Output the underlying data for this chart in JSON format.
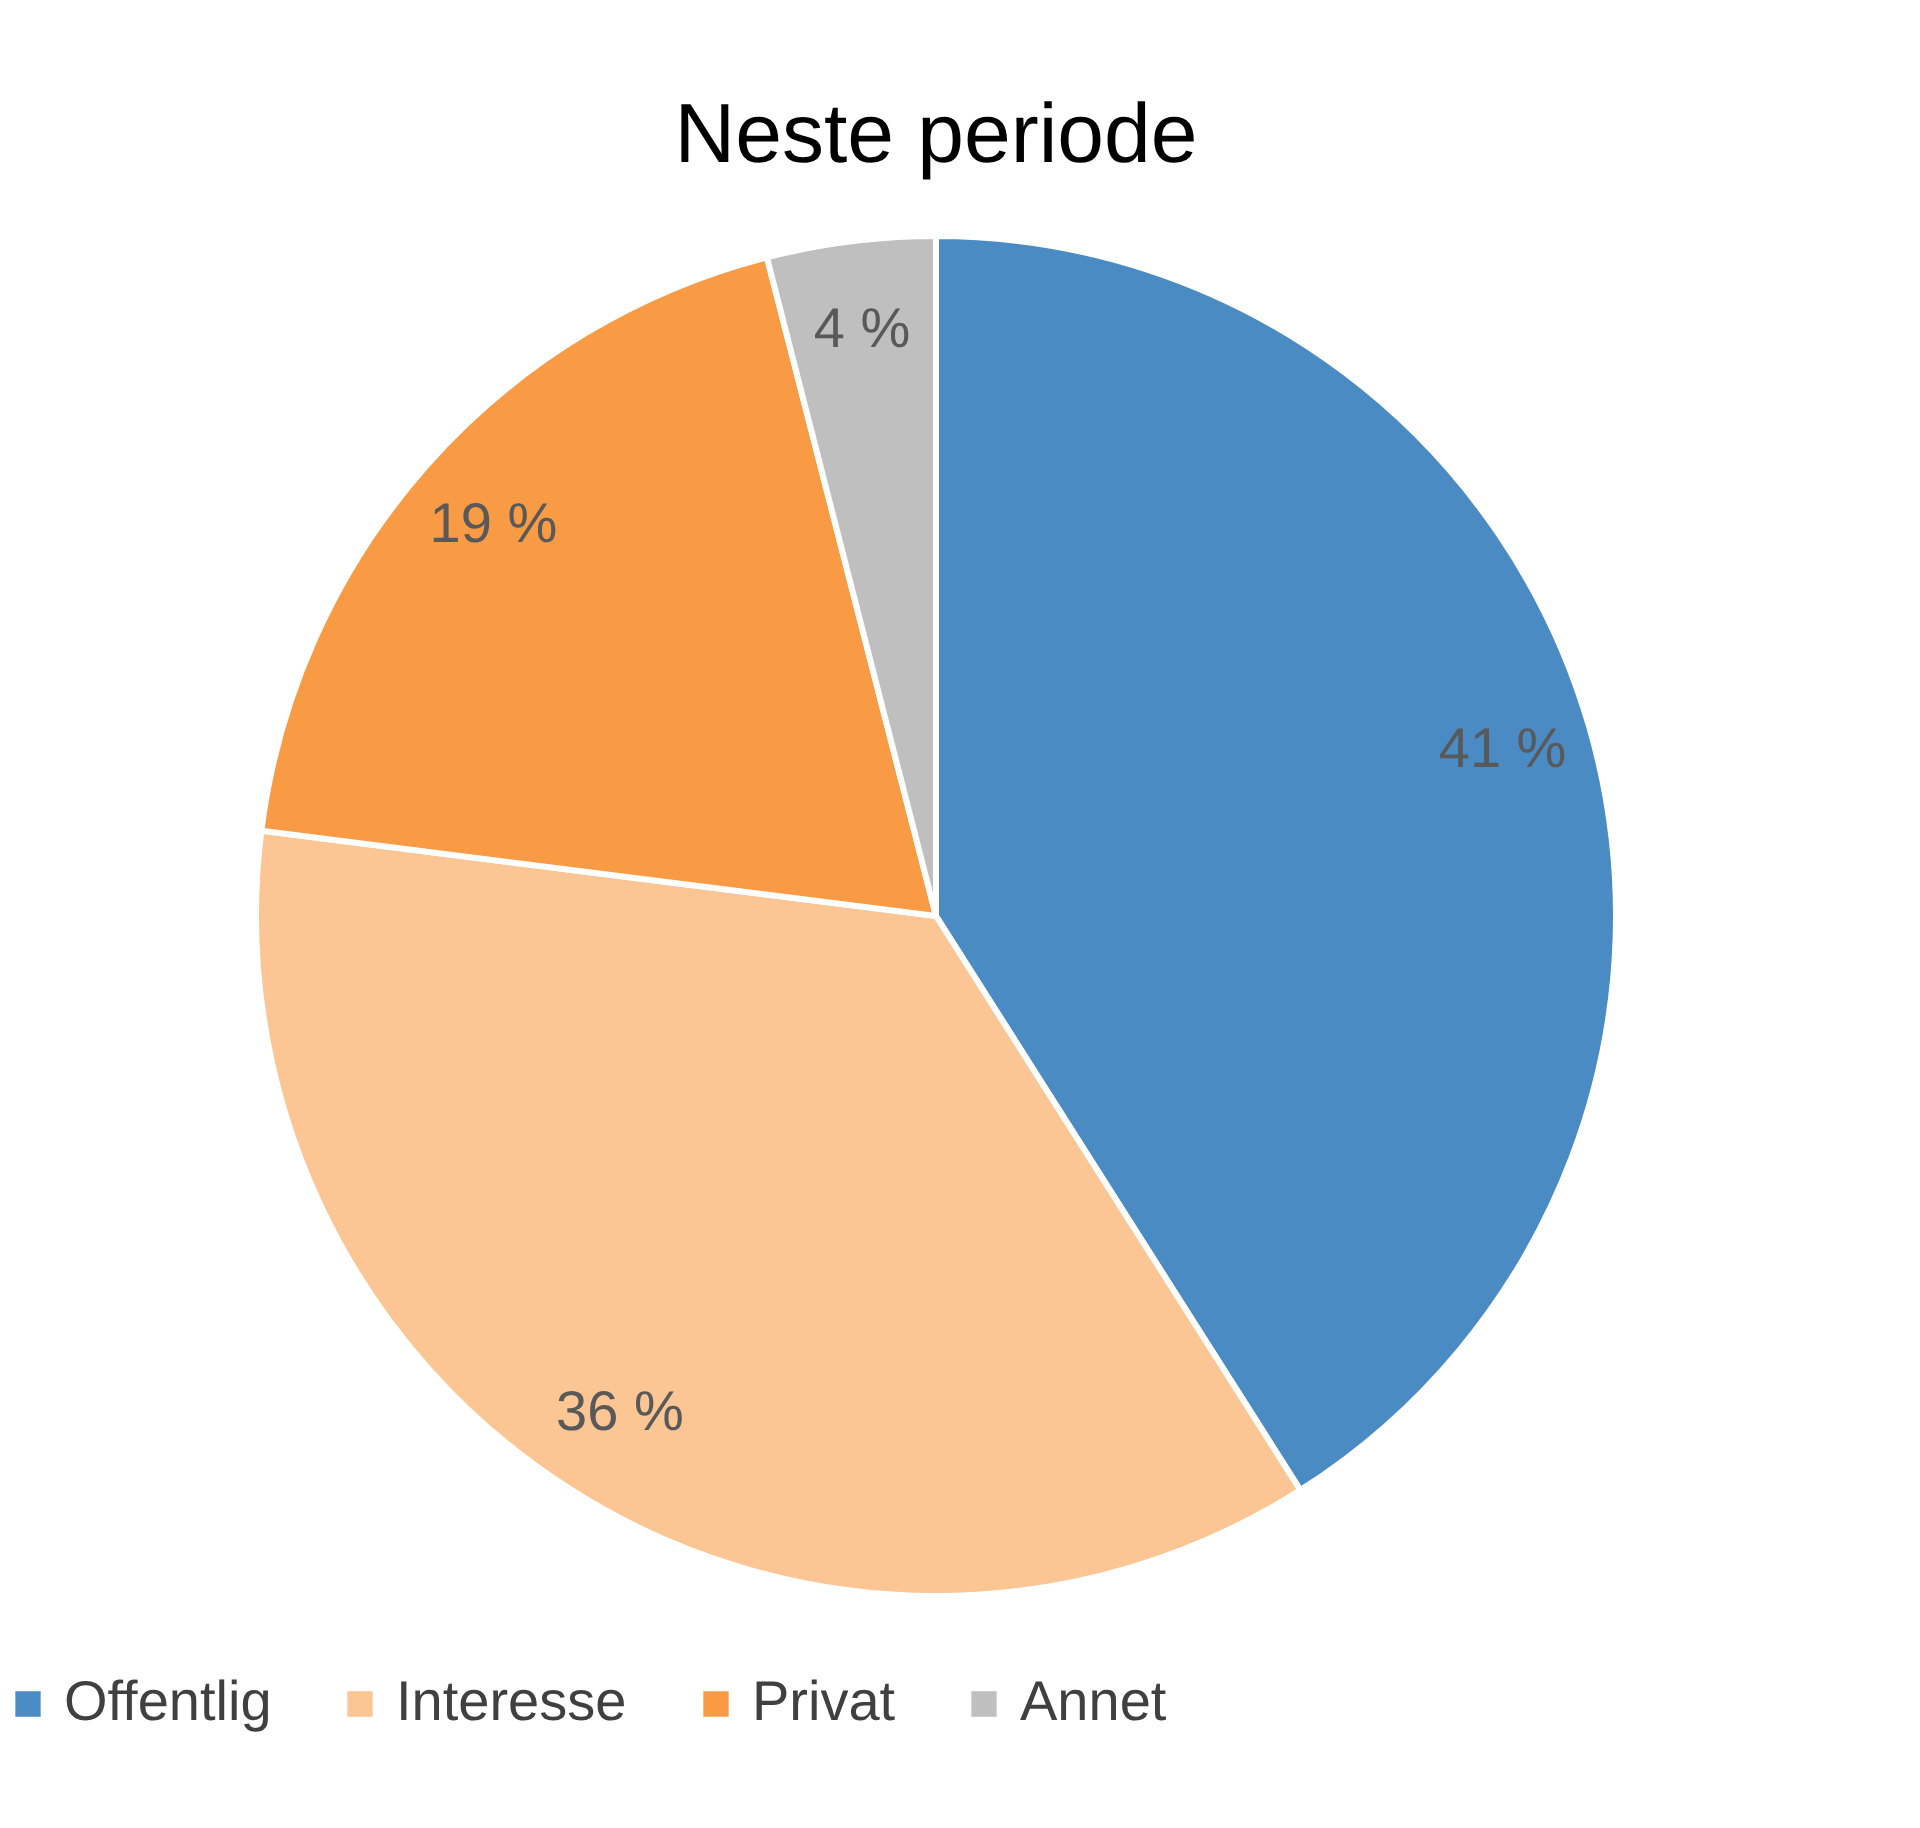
{
  "chart_data": {
    "type": "pie",
    "title": "Neste periode",
    "categories": [
      "Offentlig",
      "Interesse",
      "Privat",
      "Annet"
    ],
    "values": [
      41,
      36,
      19,
      4
    ],
    "value_labels": [
      "41 %",
      "36 %",
      "19 %",
      "4 %"
    ],
    "colors": [
      "#4a8bc4",
      "#fcc594",
      "#f99a45",
      "#bfbfbf"
    ],
    "legend": "bottom"
  }
}
